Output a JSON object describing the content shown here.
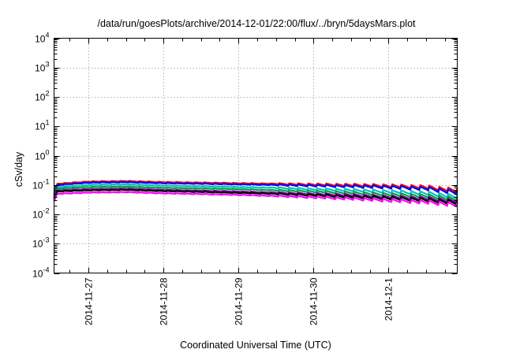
{
  "chart_data": {
    "type": "line",
    "title": "/data/run/goesPlots/archive/2014-12-01/22:00/flux/../bryn/5daysMars.plot",
    "xlabel": "Coordinated Universal Time (UTC)",
    "ylabel": "cSv/day",
    "yscale": "log",
    "ylim": [
      0.0001,
      10000
    ],
    "y_ticks": [
      {
        "base": "10",
        "exp": "-4",
        "value": 0.0001
      },
      {
        "base": "10",
        "exp": "-3",
        "value": 0.001
      },
      {
        "base": "10",
        "exp": "-2",
        "value": 0.01
      },
      {
        "base": "10",
        "exp": "-1",
        "value": 0.1
      },
      {
        "base": "10",
        "exp": "0",
        "value": 1
      },
      {
        "base": "10",
        "exp": "1",
        "value": 10
      },
      {
        "base": "10",
        "exp": "2",
        "value": 100
      },
      {
        "base": "10",
        "exp": "3",
        "value": 1000
      },
      {
        "base": "10",
        "exp": "4",
        "value": 10000
      }
    ],
    "xlim": [
      "2014-11-26T13:00",
      "2014-12-01T22:00"
    ],
    "x_ticks": [
      {
        "label": "2014-11-27",
        "value": "2014-11-27T00:00"
      },
      {
        "label": "2014-11-28",
        "value": "2014-11-28T00:00"
      },
      {
        "label": "2014-11-29",
        "value": "2014-11-29T00:00"
      },
      {
        "label": "2014-11-30",
        "value": "2014-11-30T00:00"
      },
      {
        "label": "2014-12-1",
        "value": "2014-12-01T00:00"
      }
    ],
    "grid": true,
    "legend": "none",
    "x": [
      "2014-11-26T13:00",
      "2014-11-26T14:00",
      "2014-11-27T00:00",
      "2014-11-27T12:00",
      "2014-11-28T00:00",
      "2014-11-28T12:00",
      "2014-11-29T00:00",
      "2014-11-29T12:00",
      "2014-11-30T00:00",
      "2014-11-30T12:00",
      "2014-12-01T00:00",
      "2014-12-01T12:00",
      "2014-12-01T22:00"
    ],
    "series": [
      {
        "color": "#ff0000",
        "values": [
          0.05,
          0.11,
          0.13,
          0.135,
          0.125,
          0.12,
          0.115,
          0.11,
          0.105,
          0.1,
          0.095,
          0.085,
          0.065
        ]
      },
      {
        "color": "#0000ff",
        "values": [
          0.045,
          0.1,
          0.12,
          0.125,
          0.115,
          0.11,
          0.105,
          0.1,
          0.095,
          0.09,
          0.085,
          0.075,
          0.055
        ]
      },
      {
        "color": "#00c0c0",
        "values": [
          0.04,
          0.085,
          0.1,
          0.105,
          0.095,
          0.09,
          0.085,
          0.08,
          0.072,
          0.066,
          0.06,
          0.052,
          0.04
        ]
      },
      {
        "color": "#00a040",
        "values": [
          0.036,
          0.075,
          0.085,
          0.088,
          0.08,
          0.076,
          0.072,
          0.066,
          0.06,
          0.054,
          0.048,
          0.042,
          0.033
        ]
      },
      {
        "color": "#8000a0",
        "values": [
          0.033,
          0.065,
          0.072,
          0.075,
          0.068,
          0.064,
          0.06,
          0.055,
          0.05,
          0.045,
          0.04,
          0.035,
          0.028
        ]
      },
      {
        "color": "#000000",
        "values": [
          0.031,
          0.06,
          0.066,
          0.068,
          0.062,
          0.058,
          0.054,
          0.05,
          0.045,
          0.04,
          0.036,
          0.031,
          0.025
        ]
      },
      {
        "color": "#ff00ff",
        "values": [
          0.027,
          0.05,
          0.055,
          0.057,
          0.052,
          0.049,
          0.046,
          0.042,
          0.038,
          0.034,
          0.03,
          0.026,
          0.021
        ]
      }
    ]
  }
}
